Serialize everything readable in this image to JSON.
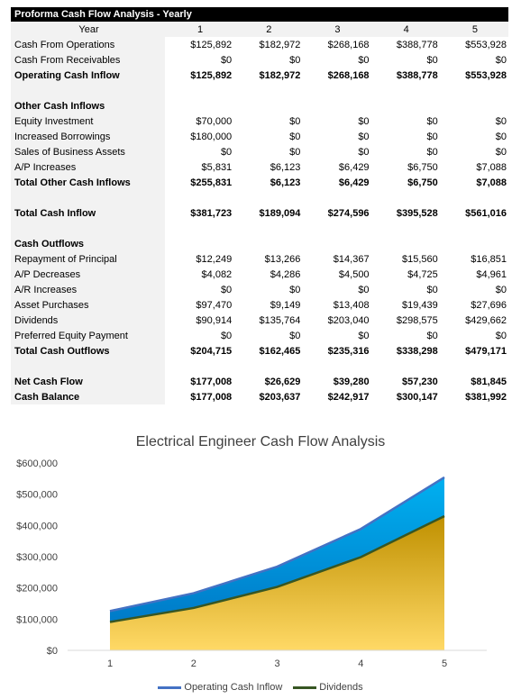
{
  "table": {
    "title": "Proforma Cash Flow Analysis - Yearly",
    "year_label": "Year",
    "years": [
      "1",
      "2",
      "3",
      "4",
      "5"
    ],
    "rows": [
      {
        "label": "Cash From Operations",
        "values": [
          "$125,892",
          "$182,972",
          "$268,168",
          "$388,778",
          "$553,928"
        ],
        "bold": false
      },
      {
        "label": "Cash From Receivables",
        "values": [
          "$0",
          "$0",
          "$0",
          "$0",
          "$0"
        ],
        "bold": false
      },
      {
        "label": "Operating Cash Inflow",
        "values": [
          "$125,892",
          "$182,972",
          "$268,168",
          "$388,778",
          "$553,928"
        ],
        "bold": true
      },
      {
        "label": "",
        "values": [],
        "bold": false
      },
      {
        "label": "Other Cash Inflows",
        "values": [],
        "bold": true
      },
      {
        "label": "Equity Investment",
        "values": [
          "$70,000",
          "$0",
          "$0",
          "$0",
          "$0"
        ],
        "bold": false
      },
      {
        "label": "Increased Borrowings",
        "values": [
          "$180,000",
          "$0",
          "$0",
          "$0",
          "$0"
        ],
        "bold": false
      },
      {
        "label": "Sales of Business Assets",
        "values": [
          "$0",
          "$0",
          "$0",
          "$0",
          "$0"
        ],
        "bold": false
      },
      {
        "label": "A/P Increases",
        "values": [
          "$5,831",
          "$6,123",
          "$6,429",
          "$6,750",
          "$7,088"
        ],
        "bold": false
      },
      {
        "label": "Total Other Cash Inflows",
        "values": [
          "$255,831",
          "$6,123",
          "$6,429",
          "$6,750",
          "$7,088"
        ],
        "bold": true
      },
      {
        "label": "",
        "values": [],
        "bold": false
      },
      {
        "label": "Total Cash Inflow",
        "values": [
          "$381,723",
          "$189,094",
          "$274,596",
          "$395,528",
          "$561,016"
        ],
        "bold": true
      },
      {
        "label": "",
        "values": [],
        "bold": false
      },
      {
        "label": "Cash Outflows",
        "values": [],
        "bold": true
      },
      {
        "label": "Repayment of Principal",
        "values": [
          "$12,249",
          "$13,266",
          "$14,367",
          "$15,560",
          "$16,851"
        ],
        "bold": false
      },
      {
        "label": "A/P Decreases",
        "values": [
          "$4,082",
          "$4,286",
          "$4,500",
          "$4,725",
          "$4,961"
        ],
        "bold": false
      },
      {
        "label": "A/R Increases",
        "values": [
          "$0",
          "$0",
          "$0",
          "$0",
          "$0"
        ],
        "bold": false
      },
      {
        "label": "Asset Purchases",
        "values": [
          "$97,470",
          "$9,149",
          "$13,408",
          "$19,439",
          "$27,696"
        ],
        "bold": false
      },
      {
        "label": "Dividends",
        "values": [
          "$90,914",
          "$135,764",
          "$203,040",
          "$298,575",
          "$429,662"
        ],
        "bold": false
      },
      {
        "label": "Preferred Equity Payment",
        "values": [
          "$0",
          "$0",
          "$0",
          "$0",
          "$0"
        ],
        "bold": false
      },
      {
        "label": "Total Cash Outflows",
        "values": [
          "$204,715",
          "$162,465",
          "$235,316",
          "$338,298",
          "$479,171"
        ],
        "bold": true
      },
      {
        "label": "",
        "values": [],
        "bold": false
      },
      {
        "label": "Net Cash Flow",
        "values": [
          "$177,008",
          "$26,629",
          "$39,280",
          "$57,230",
          "$81,845"
        ],
        "bold": true
      },
      {
        "label": "Cash Balance",
        "values": [
          "$177,008",
          "$203,637",
          "$242,917",
          "$300,147",
          "$381,992"
        ],
        "bold": true
      }
    ]
  },
  "chart_data": {
    "type": "area",
    "title": "Electrical Engineer Cash Flow Analysis",
    "xlabel": "",
    "ylabel": "",
    "x": [
      1,
      2,
      3,
      4,
      5
    ],
    "x_tick_labels": [
      "1",
      "2",
      "3",
      "4",
      "5"
    ],
    "ylim": [
      0,
      600000
    ],
    "y_ticks": [
      0,
      100000,
      200000,
      300000,
      400000,
      500000,
      600000
    ],
    "y_tick_labels": [
      "$0",
      "$100,000",
      "$200,000",
      "$300,000",
      "$400,000",
      "$500,000",
      "$600,000"
    ],
    "grid": false,
    "legend_position": "bottom",
    "series": [
      {
        "name": "Operating Cash Inflow",
        "values": [
          125892,
          182972,
          268168,
          388778,
          553928
        ],
        "line_color": "#4472c4",
        "fill_top": "#00b0f0",
        "fill_bottom": "#0070c0"
      },
      {
        "name": "Dividends",
        "values": [
          90914,
          135764,
          203040,
          298575,
          429662
        ],
        "line_color": "#375623",
        "fill_top": "#bf9000",
        "fill_bottom": "#ffd966"
      }
    ]
  }
}
